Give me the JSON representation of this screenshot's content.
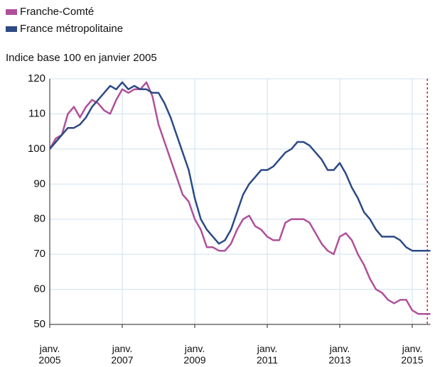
{
  "chart_data": {
    "type": "line",
    "subtitle": "Indice base 100 en janvier 2005",
    "x": [
      "2005-01",
      "2005-03",
      "2005-05",
      "2005-07",
      "2005-09",
      "2005-11",
      "2006-01",
      "2006-03",
      "2006-05",
      "2006-07",
      "2006-09",
      "2006-11",
      "2007-01",
      "2007-03",
      "2007-05",
      "2007-07",
      "2007-09",
      "2007-11",
      "2008-01",
      "2008-03",
      "2008-05",
      "2008-07",
      "2008-09",
      "2008-11",
      "2009-01",
      "2009-03",
      "2009-05",
      "2009-07",
      "2009-09",
      "2009-11",
      "2010-01",
      "2010-03",
      "2010-05",
      "2010-07",
      "2010-09",
      "2010-11",
      "2011-01",
      "2011-03",
      "2011-05",
      "2011-07",
      "2011-09",
      "2011-11",
      "2012-01",
      "2012-03",
      "2012-05",
      "2012-07",
      "2012-09",
      "2012-11",
      "2013-01",
      "2013-03",
      "2013-05",
      "2013-07",
      "2013-09",
      "2013-11",
      "2014-01",
      "2014-03",
      "2014-05",
      "2014-07",
      "2014-09",
      "2014-11",
      "2015-01",
      "2015-03",
      "2015-05",
      "2015-07"
    ],
    "series": [
      {
        "name": "Franche-Comté",
        "color": "#b0509a",
        "values": [
          100,
          103,
          104,
          110,
          112,
          109,
          112,
          114,
          113,
          111,
          110,
          114,
          117,
          116,
          117,
          117,
          119,
          115,
          107,
          102,
          97,
          92,
          87,
          85,
          80,
          77,
          72,
          72,
          71,
          71,
          73,
          77,
          80,
          81,
          78,
          77,
          75,
          74,
          74,
          79,
          80,
          80,
          80,
          79,
          76,
          73,
          71,
          70,
          75,
          76,
          74,
          70,
          67,
          63,
          60,
          59,
          57,
          56,
          57,
          57,
          54,
          53,
          53,
          53
        ]
      },
      {
        "name": "France métropolitaine",
        "color": "#2c4a86",
        "values": [
          100,
          102,
          104,
          106,
          106,
          107,
          109,
          112,
          114,
          116,
          118,
          117,
          119,
          117,
          118,
          117,
          117,
          116,
          116,
          113,
          109,
          104,
          99,
          94,
          86,
          80,
          77,
          75,
          73,
          74,
          77,
          82,
          87,
          90,
          92,
          94,
          94,
          95,
          97,
          99,
          100,
          102,
          102,
          101,
          99,
          97,
          94,
          94,
          96,
          93,
          89,
          86,
          82,
          80,
          77,
          75,
          75,
          75,
          74,
          72,
          71,
          71,
          71,
          71
        ]
      }
    ],
    "ylim": [
      50,
      120
    ],
    "yticks": [
      50,
      60,
      70,
      80,
      90,
      100,
      110,
      120
    ],
    "xlim": [
      "2005-01",
      "2015-07"
    ],
    "xticks": [
      {
        "value": "2005-01",
        "label": "janv. 2005"
      },
      {
        "value": "2007-01",
        "label": "janv. 2007"
      },
      {
        "value": "2009-01",
        "label": "janv. 2009"
      },
      {
        "value": "2011-01",
        "label": "janv. 2011"
      },
      {
        "value": "2013-01",
        "label": "janv. 2013"
      },
      {
        "value": "2015-01",
        "label": "janv. 2015"
      }
    ],
    "vline": {
      "x": "2015-06",
      "color": "#e02020"
    },
    "grid": true
  }
}
